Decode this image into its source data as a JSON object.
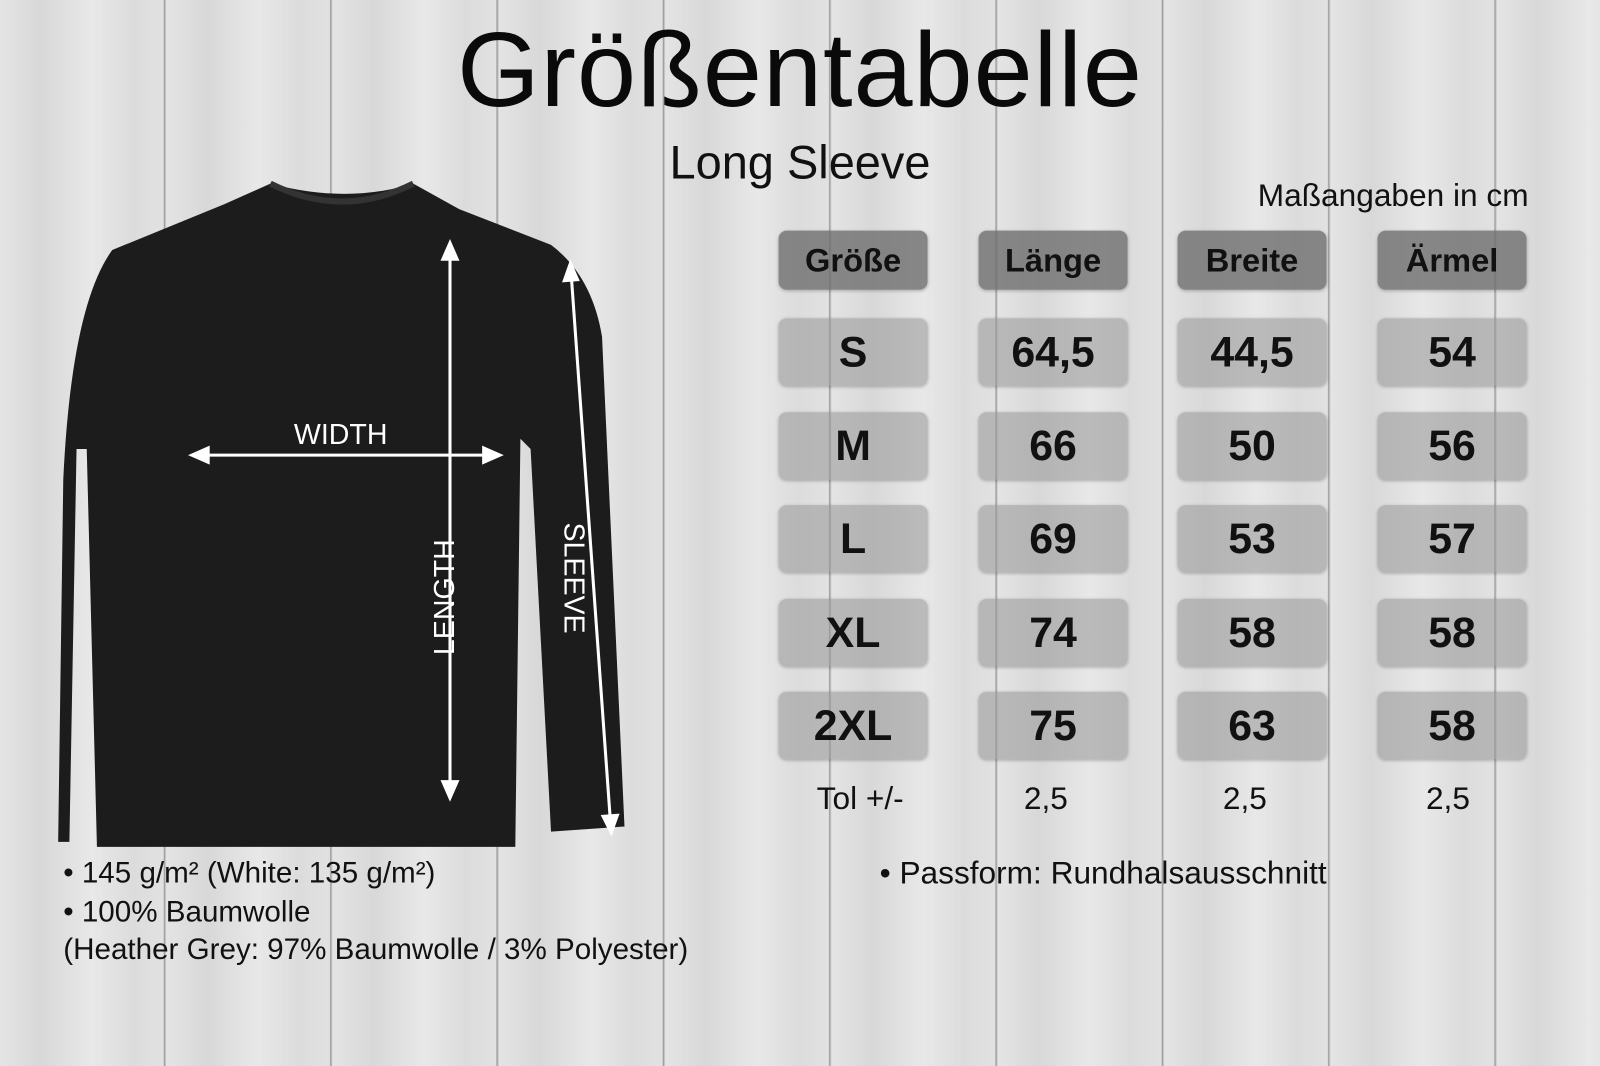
{
  "title": "Größentabelle",
  "subtitle": "Long Sleeve",
  "units": "Maßangaben in cm",
  "diagram": {
    "width": "WIDTH",
    "length": "LENGTH",
    "sleeve": "SLEEVE",
    "shirt_color": "#1c1c1c"
  },
  "table": {
    "headers": [
      "Größe",
      "Länge",
      "Breite",
      "Ärmel"
    ],
    "rows": [
      [
        "S",
        "64,5",
        "44,5",
        "54"
      ],
      [
        "M",
        "66",
        "50",
        "56"
      ],
      [
        "L",
        "69",
        "53",
        "57"
      ],
      [
        "XL",
        "74",
        "58",
        "58"
      ],
      [
        "2XL",
        "75",
        "63",
        "58"
      ]
    ],
    "tolerance": [
      "Tol +/-",
      "2,5",
      "2,5",
      "2,5"
    ]
  },
  "notes": {
    "left": [
      "• 145 g/m² (White: 135 g/m²)",
      "• 100% Baumwolle",
      "(Heather Grey: 97% Baumwolle / 3% Polyester)"
    ],
    "right": "•  Passform: Rundhalsausschnitt"
  }
}
